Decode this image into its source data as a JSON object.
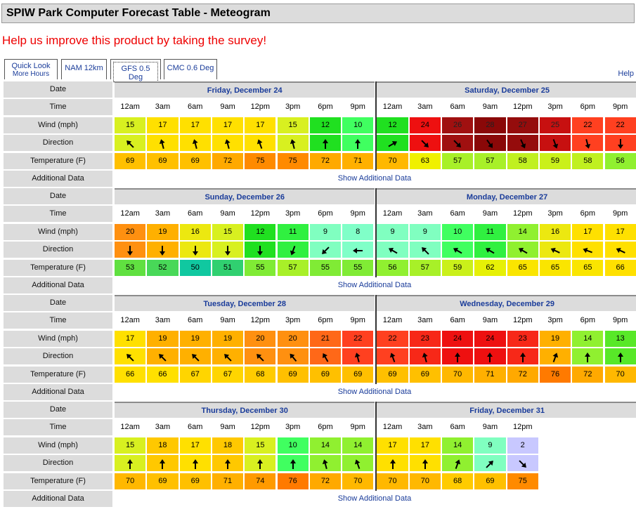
{
  "title": "SPIW Park Computer Forecast Table - Meteogram",
  "survey_text": "Help us improve this product by taking the survey!",
  "help_label": "Help",
  "tabs": [
    {
      "line1": "Quick Look",
      "line2": "More Hours",
      "active": false
    },
    {
      "line1": "NAM 12km",
      "line2": "",
      "active": false
    },
    {
      "line1": "GFS 0.5 Deg",
      "line2": "",
      "active": true
    },
    {
      "line1": "CMC 0.6 Deg",
      "line2": "",
      "active": false
    }
  ],
  "row_labels": {
    "date": "Date",
    "time": "Time",
    "wind": "Wind (mph)",
    "direction": "Direction",
    "temperature": "Temperature (F)",
    "additional": "Additional Data"
  },
  "show_additional_label": "Show Additional Data",
  "hours": [
    "12am",
    "3am",
    "6am",
    "9am",
    "12pm",
    "3pm",
    "6pm",
    "9pm"
  ],
  "blocks": [
    {
      "days": [
        {
          "label": "Friday, December 24",
          "wind": [
            15,
            17,
            17,
            17,
            17,
            15,
            12,
            10
          ],
          "dir_deg": [
            315,
            345,
            345,
            345,
            340,
            345,
            0,
            0
          ],
          "temp": [
            69,
            69,
            69,
            72,
            75,
            75,
            72,
            71
          ]
        },
        {
          "label": "Saturday, December 25",
          "wind": [
            12,
            24,
            26,
            28,
            27,
            25,
            22,
            22
          ],
          "dir_deg": [
            60,
            135,
            135,
            145,
            155,
            160,
            165,
            180
          ],
          "temp": [
            70,
            63,
            57,
            57,
            58,
            59,
            58,
            56
          ]
        }
      ]
    },
    {
      "days": [
        {
          "label": "Sunday, December 26",
          "wind": [
            20,
            19,
            16,
            15,
            12,
            11,
            9,
            8
          ],
          "dir_deg": [
            180,
            180,
            180,
            180,
            180,
            200,
            225,
            270
          ],
          "temp": [
            53,
            52,
            50,
            51,
            55,
            57,
            55,
            55
          ]
        },
        {
          "label": "Monday, December 27",
          "wind": [
            9,
            9,
            10,
            11,
            14,
            16,
            17,
            17
          ],
          "dir_deg": [
            300,
            315,
            300,
            300,
            300,
            295,
            290,
            295
          ],
          "temp": [
            56,
            57,
            59,
            62,
            65,
            65,
            65,
            66
          ]
        }
      ]
    },
    {
      "days": [
        {
          "label": "Tuesday, December 28",
          "wind": [
            17,
            19,
            19,
            19,
            20,
            20,
            21,
            22
          ],
          "dir_deg": [
            315,
            315,
            315,
            315,
            315,
            320,
            330,
            345
          ],
          "temp": [
            66,
            66,
            67,
            67,
            68,
            69,
            69,
            69
          ]
        },
        {
          "label": "Wednesday, December 29",
          "wind": [
            22,
            23,
            24,
            24,
            23,
            19,
            14,
            13
          ],
          "dir_deg": [
            340,
            345,
            0,
            0,
            0,
            20,
            0,
            0
          ],
          "temp": [
            69,
            69,
            70,
            71,
            72,
            76,
            72,
            70
          ]
        }
      ]
    },
    {
      "days": [
        {
          "label": "Thursday, December 30",
          "wind": [
            15,
            18,
            17,
            18,
            15,
            10,
            14,
            14
          ],
          "dir_deg": [
            0,
            0,
            0,
            0,
            0,
            0,
            345,
            340
          ],
          "temp": [
            70,
            69,
            69,
            71,
            74,
            76,
            72,
            70
          ]
        },
        {
          "label": "Friday, December 31",
          "wind": [
            17,
            17,
            14,
            9,
            2
          ],
          "dir_deg": [
            0,
            0,
            20,
            45,
            135
          ],
          "temp": [
            70,
            70,
            68,
            69,
            75
          ]
        }
      ]
    }
  ],
  "colors": {
    "label_bg": "#dcdcdc",
    "link": "#1a3c9a",
    "survey": "#ee0000"
  }
}
